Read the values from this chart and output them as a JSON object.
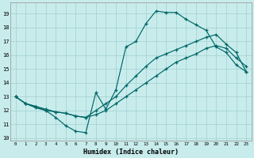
{
  "xlabel": "Humidex (Indice chaleur)",
  "xlim": [
    -0.5,
    23.5
  ],
  "ylim": [
    9.8,
    19.8
  ],
  "yticks": [
    10,
    11,
    12,
    13,
    14,
    15,
    16,
    17,
    18,
    19
  ],
  "xticks": [
    0,
    1,
    2,
    3,
    4,
    5,
    6,
    7,
    8,
    9,
    10,
    11,
    12,
    13,
    14,
    15,
    16,
    17,
    18,
    19,
    20,
    21,
    22,
    23
  ],
  "bg_color": "#c8ecec",
  "grid_color": "#a8d4d4",
  "line_color": "#006666",
  "line1_x": [
    0,
    1,
    2,
    3,
    4,
    5,
    6,
    7,
    8,
    9,
    10,
    11,
    12,
    13,
    14,
    15,
    16,
    17,
    18,
    19,
    20,
    21,
    22,
    23
  ],
  "line1_y": [
    13.0,
    12.5,
    12.2,
    12.0,
    11.5,
    10.9,
    10.5,
    10.4,
    13.3,
    12.1,
    13.5,
    16.6,
    17.0,
    18.3,
    19.2,
    19.1,
    19.1,
    18.6,
    18.2,
    17.8,
    16.6,
    16.2,
    15.3,
    14.8
  ],
  "line2_x": [
    0,
    1,
    2,
    3,
    4,
    5,
    6,
    7,
    8,
    9,
    10,
    11,
    12,
    13,
    14,
    15,
    16,
    17,
    18,
    19,
    20,
    21,
    22,
    23
  ],
  "line2_y": [
    13.0,
    12.5,
    12.3,
    12.1,
    11.9,
    11.8,
    11.6,
    11.5,
    11.7,
    12.0,
    12.5,
    13.0,
    13.5,
    14.0,
    14.5,
    15.0,
    15.5,
    15.8,
    16.1,
    16.5,
    16.7,
    16.5,
    15.8,
    15.2
  ],
  "line3_x": [
    0,
    1,
    2,
    3,
    4,
    5,
    6,
    7,
    8,
    9,
    10,
    11,
    12,
    13,
    14,
    15,
    16,
    17,
    18,
    19,
    20,
    21,
    22,
    23
  ],
  "line3_y": [
    13.0,
    12.5,
    12.3,
    12.0,
    11.9,
    11.8,
    11.6,
    11.5,
    12.0,
    12.5,
    13.0,
    13.8,
    14.5,
    15.2,
    15.8,
    16.1,
    16.4,
    16.7,
    17.0,
    17.3,
    17.5,
    16.8,
    16.2,
    14.8
  ]
}
